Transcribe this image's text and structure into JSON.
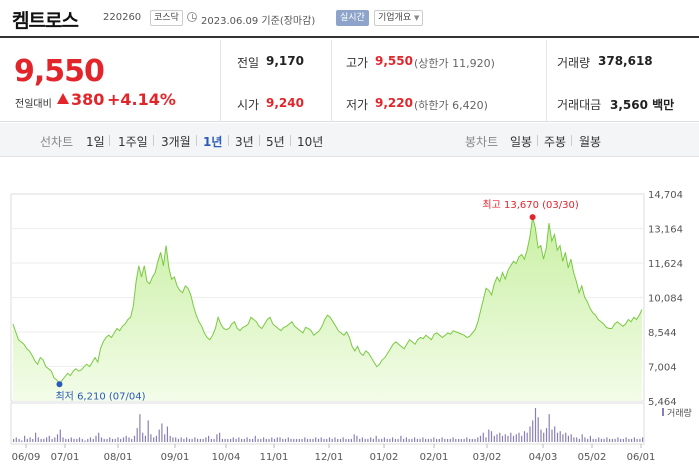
{
  "header": {
    "name": "켐트로스",
    "code": "220260",
    "market": "코스닥",
    "date": "2023.06.09 기준(장마감)",
    "realtime_label": "실시간",
    "company_info_label": "기업개요",
    "company_info_caret": "▼"
  },
  "summary": {
    "price": "9,550",
    "compare_label": "전일대비",
    "change": "380",
    "change_pct": "+4.14%",
    "prev_label": "전일",
    "prev": "9,170",
    "open_label": "시가",
    "open": "9,240",
    "high_label": "고가",
    "high": "9,550",
    "upper_limit": "(상한가 11,920)",
    "low_label": "저가",
    "low": "9,220",
    "lower_limit": "(하한가 6,420)",
    "volume_label": "거래량",
    "volume": "378,618",
    "amount_label": "거래대금",
    "amount": "3,560 백만"
  },
  "periods": {
    "line_label": "선차트",
    "items": [
      "1일",
      "1주일",
      "3개월",
      "1년",
      "3년",
      "5년",
      "10년"
    ],
    "active": "1년",
    "candle_label": "봉차트",
    "candle_items": [
      "일봉",
      "주봉",
      "월봉"
    ]
  },
  "colors": {
    "up": "#e2252b",
    "down": "#2a5bb7",
    "area_fill": "#dff7c4",
    "area_line": "#7ac943",
    "volume": "#8a7fb5"
  },
  "chart_data": {
    "type": "area",
    "y_ticks": [
      "14,704",
      "13,164",
      "11,624",
      "10,084",
      "8,544",
      "7,004",
      "5,464"
    ],
    "ylim": [
      5464,
      14704
    ],
    "x_ticks": [
      "06/09",
      "07/01",
      "08/01",
      "09/01",
      "10/04",
      "11/01",
      "12/01",
      "01/02",
      "02/01",
      "03/02",
      "04/03",
      "05/02",
      "06/01"
    ],
    "annotations": {
      "high": "최고 13,670 (03/30)",
      "low": "최저 6,210 (07/04)"
    },
    "volume_label": "거래량",
    "series": [
      {
        "values": [
          8900,
          8550,
          8200,
          8100,
          8000,
          7800,
          7700,
          7500,
          7250,
          7100,
          7400,
          7300,
          7000,
          6900,
          6800,
          6500,
          6400,
          6210,
          6400,
          6550,
          6700,
          6600,
          6800,
          6900,
          6800,
          6850,
          7000,
          7100,
          7000,
          7200,
          7400,
          7200,
          7800,
          8100,
          8300,
          8400,
          8300,
          8500,
          8700,
          8600,
          8800,
          8900,
          9100,
          9200,
          9700,
          10800,
          11500,
          11000,
          11500,
          10800,
          10700,
          11000,
          11200,
          11700,
          12100,
          11500,
          12400,
          11400,
          10900,
          11000,
          10600,
          10400,
          10300,
          10600,
          10500,
          10200,
          9700,
          9300,
          9000,
          8800,
          8500,
          8300,
          8200,
          8400,
          8700,
          9200,
          8900,
          8700,
          8650,
          8700,
          8900,
          9000,
          8700,
          8600,
          8750,
          8800,
          8900,
          9200,
          9100,
          9000,
          8800,
          8700,
          8900,
          9100,
          9200,
          8900,
          8800,
          8700,
          8600,
          8750,
          8800,
          8900,
          9000,
          8800,
          8700,
          8600,
          8500,
          8750,
          8700,
          8600,
          8400,
          8500,
          8600,
          8800,
          9100,
          9300,
          9200,
          9000,
          8800,
          8600,
          8500,
          8400,
          8550,
          8300,
          7900,
          7700,
          7900,
          7600,
          7500,
          7700,
          7600,
          7400,
          7200,
          7000,
          7100,
          7300,
          7400,
          7600,
          7800,
          8000,
          8100,
          8000,
          7900,
          7800,
          8000,
          8200,
          8100,
          8000,
          8200,
          8300,
          8250,
          8400,
          8300,
          8200,
          8450,
          8500,
          8400,
          8300,
          8400,
          8500,
          8450,
          8600,
          8550,
          8500,
          8450,
          8400,
          8300,
          8350,
          8500,
          8650,
          9000,
          9500,
          10000,
          10500,
          10400,
          10200,
          10700,
          11000,
          10800,
          11200,
          10900,
          11300,
          11500,
          11700,
          11600,
          11900,
          12000,
          11800,
          12200,
          12800,
          13670,
          13200,
          12300,
          12400,
          11800,
          12300,
          13400,
          12600,
          12900,
          12200,
          12400,
          11700,
          12100,
          11400,
          11800,
          11200,
          10800,
          10300,
          10600,
          10100,
          9900,
          9600,
          9400,
          9300,
          9100,
          9000,
          8900,
          8750,
          8700,
          8700,
          8900,
          9000,
          8900,
          8800,
          8900,
          9100,
          9000,
          9200,
          9100,
          9300,
          9550
        ]
      }
    ],
    "volume_values": [
      2,
      3,
      2,
      1,
      4,
      2,
      3,
      2,
      6,
      3,
      2,
      2,
      3,
      4,
      2,
      3,
      5,
      8,
      3,
      2,
      2,
      3,
      2,
      2,
      3,
      2,
      1,
      2,
      3,
      2,
      4,
      6,
      3,
      2,
      2,
      3,
      2,
      2,
      3,
      2,
      3,
      4,
      3,
      2,
      4,
      9,
      18,
      6,
      4,
      14,
      5,
      3,
      4,
      8,
      12,
      5,
      10,
      4,
      3,
      3,
      2,
      3,
      2,
      3,
      2,
      2,
      3,
      2,
      2,
      2,
      3,
      4,
      2,
      2,
      5,
      6,
      2,
      2,
      2,
      2,
      3,
      2,
      3,
      2,
      2,
      3,
      2,
      2,
      4,
      2,
      2,
      3,
      2,
      2,
      3,
      2,
      3,
      3,
      2,
      2,
      3,
      2,
      2,
      2,
      2,
      2,
      3,
      2,
      2,
      2,
      3,
      2,
      3,
      2,
      2,
      3,
      2,
      3,
      2,
      2,
      3,
      2,
      2,
      2,
      5,
      4,
      2,
      3,
      2,
      2,
      3,
      2,
      4,
      2,
      2,
      3,
      2,
      2,
      3,
      2,
      2,
      4,
      2,
      3,
      2,
      2,
      3,
      2,
      2,
      3,
      2,
      2,
      2,
      3,
      2,
      2,
      3,
      2,
      2,
      2,
      3,
      2,
      2,
      2,
      2,
      3,
      2,
      2,
      2,
      3,
      4,
      6,
      3,
      8,
      7,
      4,
      5,
      6,
      4,
      5,
      4,
      6,
      4,
      5,
      6,
      4,
      7,
      6,
      10,
      14,
      22,
      16,
      8,
      6,
      9,
      18,
      8,
      10,
      6,
      7,
      5,
      6,
      4,
      5,
      3,
      3,
      2,
      5,
      3,
      2,
      4,
      2,
      2,
      3,
      2,
      2,
      3,
      2,
      2,
      2,
      3,
      2,
      2,
      3,
      2,
      2,
      3,
      2,
      2,
      3
    ]
  }
}
